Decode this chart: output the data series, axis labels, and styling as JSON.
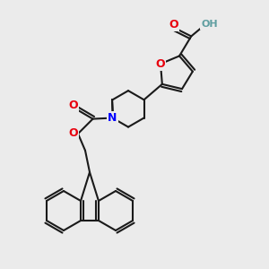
{
  "bg_color": "#ebebeb",
  "bond_color": "#1a1a1a",
  "bond_width": 1.5,
  "atom_colors": {
    "O": "#e8000d",
    "N": "#0000ff",
    "H": "#5f9ea0"
  },
  "font_size": 9
}
